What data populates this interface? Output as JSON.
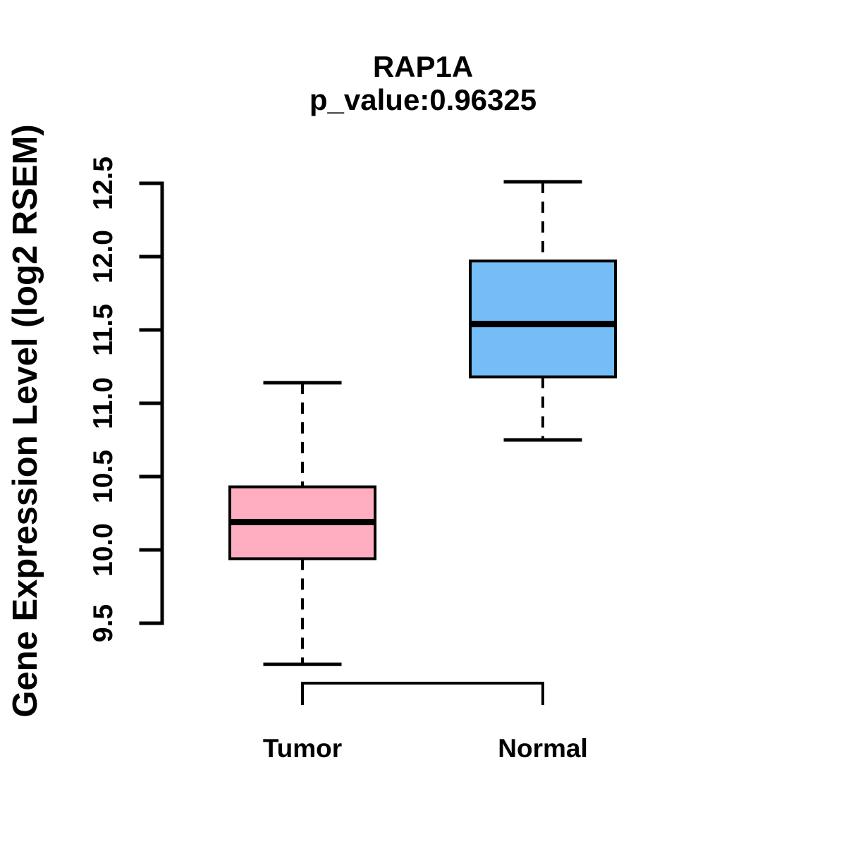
{
  "header": {
    "title": "RAP1A",
    "subtitle": "p_value:0.96325"
  },
  "chart_data": {
    "type": "boxplot",
    "title": "RAP1A",
    "subtitle": "p_value:0.96325",
    "ylabel": "Gene Expression Level (log2 RSEM)",
    "xlabel": "",
    "categories": [
      "Tumor",
      "Normal"
    ],
    "yticks": [
      9.5,
      10.0,
      10.5,
      11.0,
      11.5,
      12.0,
      12.5
    ],
    "ylim": [
      9.1,
      12.6
    ],
    "grid": false,
    "legend": "none",
    "box_border_color": "#000000",
    "axis_color": "#000000",
    "whisker_style": "dashed",
    "series": [
      {
        "name": "Tumor",
        "color": "#FFAEC1",
        "whisker_low": 9.22,
        "q1": 9.94,
        "median": 10.19,
        "q3": 10.43,
        "whisker_high": 11.14
      },
      {
        "name": "Normal",
        "color": "#74BDF7",
        "whisker_low": 10.75,
        "q1": 11.18,
        "median": 11.54,
        "q3": 11.97,
        "whisker_high": 12.51
      }
    ]
  }
}
